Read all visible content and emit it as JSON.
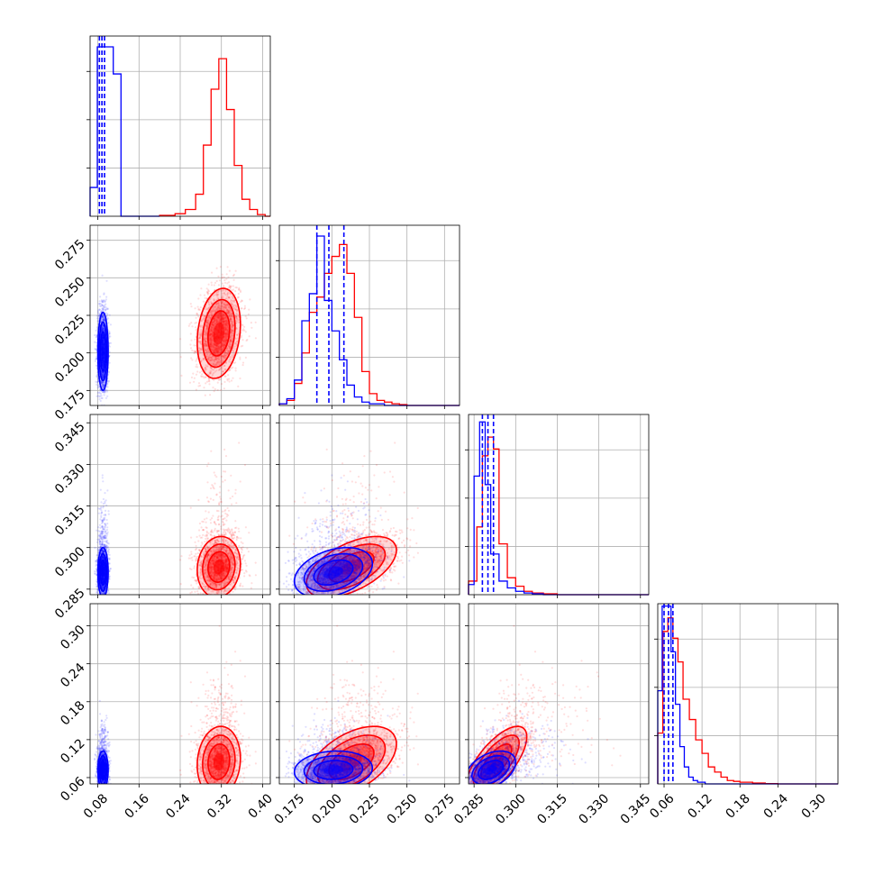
{
  "chart_data": {
    "type": "corner",
    "colors": {
      "blue": "#0000ff",
      "red": "#ff0000"
    },
    "grid": true,
    "parameters": [
      {
        "range": [
          0.065,
          0.415
        ],
        "ticks": [
          "0.08",
          "0.16",
          "0.24",
          "0.32",
          "0.40"
        ]
      },
      {
        "range": [
          0.165,
          0.285
        ],
        "ticks": [
          "0.175",
          "0.200",
          "0.225",
          "0.250",
          "0.275"
        ]
      },
      {
        "range": [
          0.283,
          0.348
        ],
        "ticks": [
          "0.285",
          "0.300",
          "0.315",
          "0.330",
          "0.345"
        ]
      },
      {
        "range": [
          0.05,
          0.335
        ],
        "ticks": [
          "0.06",
          "0.12",
          "0.18",
          "0.24",
          "0.30"
        ]
      }
    ],
    "histograms": [
      {
        "ymax": 1.0,
        "blue": {
          "edges": [
            0.065,
            0.079,
            0.098,
            0.11,
            0.125,
            0.2
          ],
          "heights": [
            0.17,
            1.0,
            1.0,
            0.84,
            0.0
          ],
          "quantiles": [
            0.083,
            0.088,
            0.093
          ]
        },
        "red": {
          "edges": [
            0.2,
            0.23,
            0.25,
            0.27,
            0.285,
            0.3,
            0.315,
            0.33,
            0.345,
            0.36,
            0.375,
            0.39,
            0.405,
            0.415
          ],
          "heights": [
            0.005,
            0.015,
            0.04,
            0.13,
            0.42,
            0.75,
            0.93,
            0.63,
            0.3,
            0.1,
            0.04,
            0.01,
            0.0
          ]
        }
      },
      {
        "ymax": 1.0,
        "blue": {
          "edges": [
            0.165,
            0.17,
            0.175,
            0.18,
            0.185,
            0.19,
            0.195,
            0.2,
            0.205,
            0.21,
            0.215,
            0.22,
            0.225,
            0.23,
            0.235,
            0.24,
            0.25,
            0.285
          ],
          "heights": [
            0.01,
            0.04,
            0.15,
            0.5,
            0.66,
            1.0,
            0.62,
            0.44,
            0.27,
            0.12,
            0.05,
            0.02,
            0.01,
            0.01,
            0.0,
            0.0,
            0.0
          ],
          "quantiles": [
            0.19,
            0.198,
            0.208
          ]
        },
        "red": {
          "edges": [
            0.165,
            0.17,
            0.175,
            0.18,
            0.185,
            0.19,
            0.195,
            0.2,
            0.205,
            0.21,
            0.215,
            0.22,
            0.225,
            0.23,
            0.235,
            0.24,
            0.245,
            0.25,
            0.255,
            0.285
          ],
          "heights": [
            0.01,
            0.03,
            0.13,
            0.31,
            0.55,
            0.64,
            0.78,
            0.88,
            0.95,
            0.78,
            0.52,
            0.2,
            0.07,
            0.03,
            0.02,
            0.01,
            0.005,
            0.0,
            0.0
          ]
        }
      },
      {
        "ymax": 1.0,
        "blue": {
          "edges": [
            0.283,
            0.285,
            0.287,
            0.289,
            0.291,
            0.294,
            0.297,
            0.3,
            0.303,
            0.306,
            0.31,
            0.348
          ],
          "heights": [
            0.06,
            0.7,
            1.02,
            0.65,
            0.24,
            0.08,
            0.04,
            0.02,
            0.01,
            0.005,
            0.0
          ],
          "quantiles": [
            0.288,
            0.29,
            0.292
          ]
        },
        "red": {
          "edges": [
            0.283,
            0.286,
            0.288,
            0.29,
            0.292,
            0.294,
            0.297,
            0.3,
            0.303,
            0.306,
            0.31,
            0.315,
            0.348
          ],
          "heights": [
            0.08,
            0.4,
            0.82,
            0.93,
            0.86,
            0.3,
            0.1,
            0.05,
            0.02,
            0.01,
            0.005,
            0.0
          ]
        }
      },
      {
        "ymax": 1.0,
        "blue": {
          "edges": [
            0.05,
            0.057,
            0.064,
            0.071,
            0.078,
            0.085,
            0.092,
            0.099,
            0.106,
            0.113,
            0.125,
            0.335
          ],
          "heights": [
            0.55,
            1.05,
            1.05,
            0.78,
            0.47,
            0.22,
            0.1,
            0.04,
            0.02,
            0.01,
            0.0
          ],
          "quantiles": [
            0.06,
            0.067,
            0.074
          ]
        },
        "red": {
          "edges": [
            0.05,
            0.058,
            0.066,
            0.074,
            0.082,
            0.09,
            0.1,
            0.11,
            0.12,
            0.13,
            0.14,
            0.15,
            0.16,
            0.17,
            0.18,
            0.2,
            0.22,
            0.24,
            0.335
          ],
          "heights": [
            0.3,
            0.9,
            0.98,
            0.86,
            0.72,
            0.5,
            0.38,
            0.26,
            0.18,
            0.1,
            0.07,
            0.04,
            0.02,
            0.015,
            0.01,
            0.005,
            0.002,
            0.0
          ]
        }
      }
    ],
    "distributions": [
      {
        "name": "blue",
        "color": "#0000ff",
        "mean": [
          0.09,
          0.201,
          0.291,
          0.072
        ],
        "std": [
          0.005,
          0.013,
          0.0045,
          0.015
        ],
        "corr": [
          [
            1,
            0,
            0,
            0
          ],
          [
            0,
            1,
            0.35,
            0.1
          ],
          [
            0,
            0.35,
            1,
            0.4
          ],
          [
            0,
            0.1,
            0.4,
            1
          ]
        ]
      },
      {
        "name": "red",
        "color": "#ff0000",
        "mean": [
          0.315,
          0.213,
          0.293,
          0.085
        ],
        "std": [
          0.021,
          0.015,
          0.0055,
          0.028
        ],
        "corr": [
          [
            1,
            0.2,
            0.1,
            0.1
          ],
          [
            0.2,
            1,
            0.55,
            0.5
          ],
          [
            0.1,
            0.55,
            1,
            0.7
          ],
          [
            0.1,
            0.5,
            0.7,
            1
          ]
        ]
      }
    ]
  }
}
